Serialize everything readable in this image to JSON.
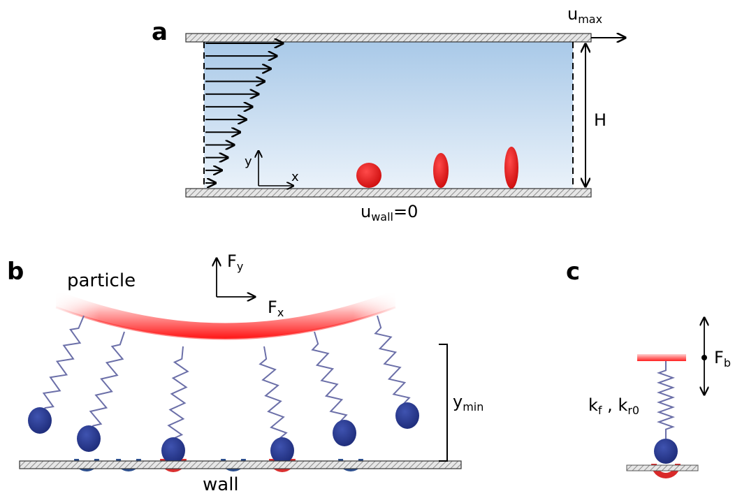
{
  "panels": {
    "a": {
      "label": "a",
      "u_max": {
        "main": "u",
        "sub": "max"
      },
      "height_label": "H",
      "axis_y": "y",
      "axis_x": "x",
      "u_wall": {
        "main": "u",
        "sub": "wall",
        "suffix": "=0"
      }
    },
    "b": {
      "label": "b",
      "particle": "particle",
      "force_y": {
        "main": "F",
        "sub": "y"
      },
      "force_x": {
        "main": "F",
        "sub": "x"
      },
      "y_min": {
        "main": "y",
        "sub": "min"
      },
      "wall": "wall"
    },
    "c": {
      "label": "c",
      "force_b": {
        "main": "F",
        "sub": "b"
      },
      "k_f": {
        "main": "k",
        "sub": "f"
      },
      "separator": " , ",
      "k_r0": {
        "main": "k",
        "sub": "r0"
      }
    }
  },
  "colors": {
    "fluid_top": "#a9c9e8",
    "fluid_bottom": "#e8f1fa",
    "cell_red": "#e01818",
    "receptor_blue": "#2d4f8e",
    "ligand_blue": "#2a3c8c",
    "spring": "#6b6fa8",
    "bond_red": "#d93030"
  }
}
